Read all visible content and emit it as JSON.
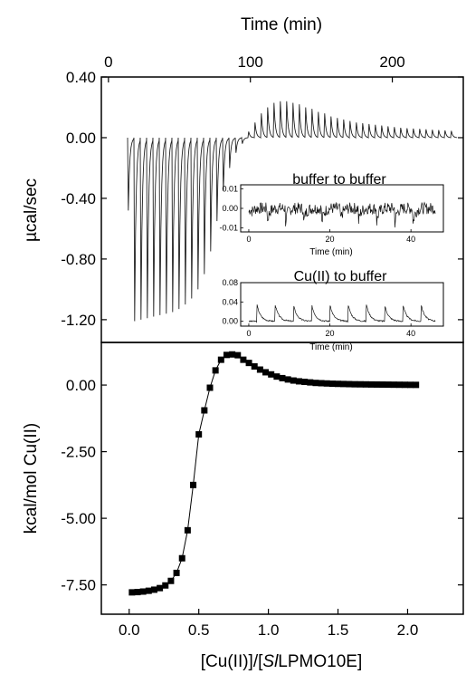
{
  "chart_data": [
    {
      "type": "line",
      "panel": "top",
      "top_axis": {
        "label": "Time (min)",
        "ticks": [
          "0",
          "100",
          "200"
        ],
        "range": [
          -5,
          250
        ]
      },
      "ylabel": "µcal/sec",
      "ylim": [
        -1.35,
        0.4
      ],
      "y_ticks": [
        "0.40",
        "0.00",
        "-0.40",
        "-0.80",
        "-1.20"
      ],
      "injection_peaks": {
        "count": 52,
        "baseline": 0.0,
        "peak_values": [
          -0.48,
          -1.21,
          -1.2,
          -1.19,
          -1.18,
          -1.17,
          -1.16,
          -1.15,
          -1.13,
          -1.1,
          -1.06,
          -1.0,
          -0.9,
          -0.75,
          -0.55,
          -0.35,
          -0.2,
          -0.1,
          -0.04,
          0.04,
          0.1,
          0.16,
          0.2,
          0.23,
          0.24,
          0.24,
          0.23,
          0.22,
          0.2,
          0.19,
          0.17,
          0.16,
          0.14,
          0.13,
          0.12,
          0.11,
          0.1,
          0.095,
          0.09,
          0.085,
          0.08,
          0.075,
          0.07,
          0.065,
          0.062,
          0.06,
          0.058,
          0.055,
          0.052,
          0.05,
          0.048,
          0.045
        ]
      },
      "grid": false
    },
    {
      "type": "line",
      "panel": "inset-1",
      "title": "buffer to buffer",
      "xlabel": "Time (min)",
      "x_ticks": [
        "0",
        "20",
        "40"
      ],
      "xlim": [
        -2,
        48
      ],
      "ylim": [
        -0.012,
        0.012
      ],
      "y_ticks": [
        "0.01",
        "0.00",
        "-0.01"
      ],
      "noise_amplitude": 0.003,
      "injection_times": [
        0,
        4.5,
        9,
        13.5,
        18,
        22.5,
        27,
        31.5,
        36,
        40.5
      ],
      "dip_value": -0.008
    },
    {
      "type": "line",
      "panel": "inset-2",
      "title": "Cu(II) to buffer",
      "xlabel": "Time (min)",
      "x_ticks": [
        "0",
        "20",
        "40"
      ],
      "xlim": [
        -2,
        48
      ],
      "ylim": [
        -0.01,
        0.08
      ],
      "y_ticks": [
        "0.08",
        "0.04",
        "0.00"
      ],
      "injection_times": [
        2,
        6.5,
        11,
        15.5,
        20,
        24.5,
        29,
        33.5,
        38,
        42.5
      ],
      "peak_value": 0.035
    },
    {
      "type": "scatter",
      "panel": "bottom",
      "xlabel": "[Cu(II)]/[SlLPMO10E]",
      "xlabel_parts": {
        "prefix": "[Cu(II)]/[",
        "italic": "Sl",
        "suffix": "LPMO10E]"
      },
      "ylabel": "kcal/mol Cu(II)",
      "xlim": [
        -0.2,
        2.4
      ],
      "x_ticks": [
        0.0,
        0.5,
        1.0,
        1.5,
        2.0
      ],
      "x_tick_labels": [
        "0.0",
        "0.5",
        "1.0",
        "1.5",
        "2.0"
      ],
      "ylim": [
        -8.6,
        1.6
      ],
      "y_ticks": [
        0.0,
        -2.5,
        -5.0,
        -7.5
      ],
      "y_tick_labels": [
        "0.00",
        "-2.50",
        "-5.00",
        "-7.50"
      ],
      "x": [
        0.02,
        0.06,
        0.1,
        0.14,
        0.18,
        0.22,
        0.26,
        0.3,
        0.34,
        0.38,
        0.42,
        0.46,
        0.5,
        0.54,
        0.58,
        0.62,
        0.66,
        0.7,
        0.74,
        0.78,
        0.82,
        0.86,
        0.9,
        0.94,
        0.98,
        1.02,
        1.06,
        1.1,
        1.14,
        1.18,
        1.22,
        1.26,
        1.3,
        1.34,
        1.38,
        1.42,
        1.46,
        1.5,
        1.54,
        1.58,
        1.62,
        1.66,
        1.7,
        1.74,
        1.78,
        1.82,
        1.86,
        1.9,
        1.94,
        1.98,
        2.02,
        2.06
      ],
      "y": [
        -7.78,
        -7.77,
        -7.75,
        -7.72,
        -7.68,
        -7.62,
        -7.52,
        -7.35,
        -7.05,
        -6.5,
        -5.45,
        -3.75,
        -1.85,
        -0.95,
        -0.1,
        0.55,
        0.95,
        1.13,
        1.15,
        1.12,
        0.95,
        0.83,
        0.7,
        0.58,
        0.48,
        0.4,
        0.32,
        0.26,
        0.21,
        0.17,
        0.14,
        0.12,
        0.1,
        0.08,
        0.07,
        0.06,
        0.05,
        0.045,
        0.04,
        0.035,
        0.03,
        0.028,
        0.025,
        0.022,
        0.02,
        0.018,
        0.016,
        0.014,
        0.012,
        0.01,
        0.008,
        0.007
      ],
      "marker": "square",
      "fit_line": true,
      "grid": false
    }
  ]
}
